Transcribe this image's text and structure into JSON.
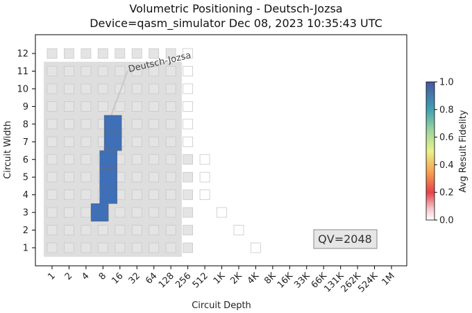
{
  "chart_data": {
    "type": "heatmap",
    "title": "Volumetric Positioning - Deutsch-Jozsa",
    "subtitle": "Device=qasm_simulator  Dec 08, 2023 10:35:43 UTC",
    "xlabel": "Circuit Depth",
    "ylabel": "Circuit Width",
    "x_ticks": [
      "1",
      "2",
      "4",
      "8",
      "16",
      "32",
      "64",
      "128",
      "256",
      "512",
      "1K",
      "2K",
      "4K",
      "8K",
      "16K",
      "33K",
      "66K",
      "131K",
      "262K",
      "524K",
      "1M"
    ],
    "y_ticks": [
      "1",
      "2",
      "3",
      "4",
      "5",
      "6",
      "7",
      "8",
      "9",
      "10",
      "11",
      "12"
    ],
    "quantum_volume_label": "QV=2048",
    "annotation": "Deutsch-Jozsa",
    "colorbar": {
      "label": "Avg Result Fidelity",
      "ticks": [
        "0.0",
        "0.2",
        "0.4",
        "0.6",
        "0.8",
        "1.0"
      ],
      "range": [
        0.0,
        1.0
      ]
    },
    "qv_region": {
      "depth_max": "128",
      "width_max": 11
    },
    "background_cells_filled": [
      {
        "width": 1,
        "max_depth_index": 8
      },
      {
        "width": 2,
        "max_depth_index": 8
      },
      {
        "width": 3,
        "max_depth_index": 8
      },
      {
        "width": 4,
        "max_depth_index": 8
      },
      {
        "width": 5,
        "max_depth_index": 8
      },
      {
        "width": 6,
        "max_depth_index": 8
      },
      {
        "width": 7,
        "max_depth_index": 7
      },
      {
        "width": 8,
        "max_depth_index": 7
      },
      {
        "width": 9,
        "max_depth_index": 7
      },
      {
        "width": 10,
        "max_depth_index": 7
      },
      {
        "width": 11,
        "max_depth_index": 7
      },
      {
        "width": 12,
        "max_depth_index": 7
      }
    ],
    "background_cells_empty": [
      {
        "width": 1,
        "depth_index": 12
      },
      {
        "width": 2,
        "depth_index": 11
      },
      {
        "width": 3,
        "depth_index": 10
      },
      {
        "width": 5,
        "depth_index": 9
      },
      {
        "width": 6,
        "depth_index": 9
      },
      {
        "width": 4,
        "depth_index": 9
      },
      {
        "width": 7,
        "depth_index": 8
      },
      {
        "width": 8,
        "depth_index": 8
      },
      {
        "width": 9,
        "depth_index": 8
      },
      {
        "width": 10,
        "depth_index": 8
      },
      {
        "width": 11,
        "depth_index": 8
      },
      {
        "width": 12,
        "depth_index": 8
      }
    ],
    "data_points": [
      {
        "width": 3,
        "depth": 7,
        "fidelity": 1.0
      },
      {
        "width": 4,
        "depth": 10,
        "fidelity": 1.0
      },
      {
        "width": 5,
        "depth": 10,
        "fidelity": 1.0
      },
      {
        "width": 6,
        "depth": 10,
        "fidelity": 1.0
      },
      {
        "width": 7,
        "depth": 12,
        "fidelity": 1.0
      },
      {
        "width": 8,
        "depth": 12,
        "fidelity": 1.0
      }
    ]
  }
}
